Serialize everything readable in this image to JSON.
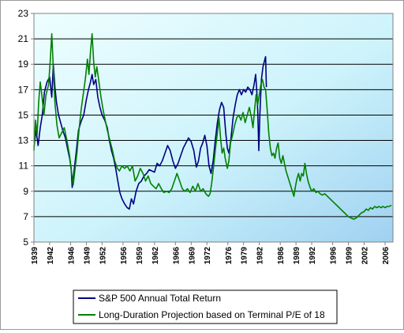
{
  "chart_data": {
    "type": "line",
    "title": "",
    "xlabel": "",
    "ylabel": "",
    "ylim": [
      5,
      23
    ],
    "yticks": [
      5,
      7,
      9,
      11,
      13,
      15,
      17,
      19,
      21,
      23
    ],
    "xlim": [
      1939,
      2007.5
    ],
    "xticks": [
      1939,
      1942,
      1946,
      1949,
      1952,
      1956,
      1959,
      1962,
      1966,
      1969,
      1972,
      1976,
      1979,
      1982,
      1986,
      1989,
      1992,
      1996,
      1999,
      2002,
      2006
    ],
    "grid": "horizontal",
    "plot_background": "light blue gradient",
    "legend_position": "bottom-center",
    "series": [
      {
        "name": "S&P 500 Annual Total Return",
        "color": "#000080",
        "points": [
          [
            1939.0,
            12.5
          ],
          [
            1939.4,
            13.8
          ],
          [
            1939.8,
            12.6
          ],
          [
            1940.2,
            14.0
          ],
          [
            1940.6,
            15.0
          ],
          [
            1941.0,
            16.8
          ],
          [
            1941.5,
            17.6
          ],
          [
            1942.0,
            18.0
          ],
          [
            1942.4,
            16.4
          ],
          [
            1942.7,
            19.0
          ],
          [
            1943.0,
            17.2
          ],
          [
            1943.3,
            16.0
          ],
          [
            1943.7,
            15.0
          ],
          [
            1944.1,
            14.4
          ],
          [
            1944.5,
            13.8
          ],
          [
            1945.0,
            13.2
          ],
          [
            1945.4,
            12.4
          ],
          [
            1945.8,
            11.6
          ],
          [
            1946.1,
            10.8
          ],
          [
            1946.3,
            9.3
          ],
          [
            1946.6,
            10.4
          ],
          [
            1947.0,
            11.8
          ],
          [
            1947.5,
            13.8
          ],
          [
            1948.0,
            14.5
          ],
          [
            1948.5,
            15.0
          ],
          [
            1949.0,
            16.2
          ],
          [
            1949.4,
            17.0
          ],
          [
            1949.8,
            17.6
          ],
          [
            1950.1,
            18.2
          ],
          [
            1950.4,
            17.4
          ],
          [
            1950.8,
            17.8
          ],
          [
            1951.2,
            16.4
          ],
          [
            1951.6,
            15.6
          ],
          [
            1952.0,
            15.0
          ],
          [
            1952.5,
            14.6
          ],
          [
            1953.0,
            14.0
          ],
          [
            1953.4,
            13.0
          ],
          [
            1953.8,
            12.2
          ],
          [
            1954.2,
            11.6
          ],
          [
            1954.6,
            10.8
          ],
          [
            1955.0,
            9.8
          ],
          [
            1955.4,
            8.9
          ],
          [
            1955.8,
            8.4
          ],
          [
            1956.3,
            8.0
          ],
          [
            1956.8,
            7.7
          ],
          [
            1957.2,
            7.6
          ],
          [
            1957.6,
            8.4
          ],
          [
            1958.0,
            8.0
          ],
          [
            1958.5,
            9.0
          ],
          [
            1959.0,
            9.6
          ],
          [
            1959.5,
            9.8
          ],
          [
            1960.0,
            10.2
          ],
          [
            1960.5,
            10.4
          ],
          [
            1961.0,
            10.7
          ],
          [
            1961.5,
            10.6
          ],
          [
            1962.0,
            10.5
          ],
          [
            1962.5,
            11.2
          ],
          [
            1963.0,
            11.0
          ],
          [
            1963.5,
            11.4
          ],
          [
            1964.0,
            12.0
          ],
          [
            1964.5,
            12.6
          ],
          [
            1965.0,
            12.2
          ],
          [
            1965.5,
            11.4
          ],
          [
            1966.0,
            10.8
          ],
          [
            1966.5,
            11.2
          ],
          [
            1967.0,
            11.8
          ],
          [
            1967.5,
            12.4
          ],
          [
            1968.0,
            12.8
          ],
          [
            1968.5,
            13.2
          ],
          [
            1969.0,
            12.9
          ],
          [
            1969.5,
            12.2
          ],
          [
            1970.0,
            10.9
          ],
          [
            1970.4,
            11.4
          ],
          [
            1970.8,
            12.4
          ],
          [
            1971.2,
            12.8
          ],
          [
            1971.6,
            13.4
          ],
          [
            1972.0,
            12.6
          ],
          [
            1972.4,
            11.0
          ],
          [
            1972.8,
            10.4
          ],
          [
            1973.2,
            11.4
          ],
          [
            1973.6,
            13.0
          ],
          [
            1974.0,
            14.4
          ],
          [
            1974.4,
            15.4
          ],
          [
            1974.8,
            16.0
          ],
          [
            1975.2,
            15.6
          ],
          [
            1975.6,
            13.6
          ],
          [
            1975.9,
            12.4
          ],
          [
            1976.2,
            12.0
          ],
          [
            1976.6,
            13.2
          ],
          [
            1977.0,
            14.8
          ],
          [
            1977.4,
            15.8
          ],
          [
            1977.8,
            16.6
          ],
          [
            1978.2,
            17.0
          ],
          [
            1978.6,
            16.6
          ],
          [
            1979.0,
            17.0
          ],
          [
            1979.4,
            16.8
          ],
          [
            1979.8,
            17.2
          ],
          [
            1980.2,
            17.0
          ],
          [
            1980.6,
            16.6
          ],
          [
            1981.0,
            17.4
          ],
          [
            1981.3,
            18.2
          ],
          [
            1981.5,
            17.0
          ],
          [
            1981.7,
            15.4
          ],
          [
            1981.9,
            12.2
          ],
          [
            1982.1,
            15.0
          ],
          [
            1982.4,
            17.8
          ],
          [
            1982.7,
            18.8
          ],
          [
            1983.0,
            19.3
          ],
          [
            1983.2,
            19.6
          ],
          [
            1983.35,
            17.2
          ]
        ]
      },
      {
        "name": "Long-Duration Projection based on Terminal P/E of 18",
        "color": "#008000",
        "points": [
          [
            1939.0,
            12.2
          ],
          [
            1939.3,
            14.6
          ],
          [
            1939.6,
            13.4
          ],
          [
            1939.9,
            16.0
          ],
          [
            1940.2,
            17.6
          ],
          [
            1940.5,
            16.6
          ],
          [
            1940.9,
            15.0
          ],
          [
            1941.3,
            16.6
          ],
          [
            1941.8,
            17.4
          ],
          [
            1942.1,
            19.2
          ],
          [
            1942.4,
            21.4
          ],
          [
            1942.7,
            18.6
          ],
          [
            1943.0,
            16.0
          ],
          [
            1943.4,
            14.2
          ],
          [
            1943.8,
            13.2
          ],
          [
            1944.3,
            13.6
          ],
          [
            1944.8,
            14.0
          ],
          [
            1945.3,
            13.0
          ],
          [
            1945.8,
            11.8
          ],
          [
            1946.2,
            10.4
          ],
          [
            1946.5,
            9.5
          ],
          [
            1946.8,
            10.6
          ],
          [
            1947.2,
            12.0
          ],
          [
            1947.6,
            13.8
          ],
          [
            1948.0,
            15.4
          ],
          [
            1948.4,
            16.6
          ],
          [
            1948.8,
            17.8
          ],
          [
            1949.2,
            19.4
          ],
          [
            1949.5,
            18.2
          ],
          [
            1949.8,
            20.0
          ],
          [
            1950.1,
            21.4
          ],
          [
            1950.4,
            19.2
          ],
          [
            1950.7,
            18.0
          ],
          [
            1951.0,
            18.8
          ],
          [
            1951.4,
            17.6
          ],
          [
            1951.8,
            16.4
          ],
          [
            1952.2,
            15.4
          ],
          [
            1952.6,
            14.6
          ],
          [
            1953.0,
            13.8
          ],
          [
            1953.5,
            13.0
          ],
          [
            1954.0,
            12.2
          ],
          [
            1954.4,
            11.4
          ],
          [
            1954.9,
            10.8
          ],
          [
            1955.3,
            10.6
          ],
          [
            1955.8,
            11.0
          ],
          [
            1956.3,
            10.8
          ],
          [
            1956.8,
            11.0
          ],
          [
            1957.3,
            10.6
          ],
          [
            1957.8,
            11.0
          ],
          [
            1958.3,
            9.8
          ],
          [
            1958.8,
            10.2
          ],
          [
            1959.3,
            10.8
          ],
          [
            1959.8,
            10.4
          ],
          [
            1960.3,
            9.8
          ],
          [
            1960.8,
            10.2
          ],
          [
            1961.3,
            9.6
          ],
          [
            1961.8,
            9.4
          ],
          [
            1962.3,
            9.2
          ],
          [
            1962.8,
            9.6
          ],
          [
            1963.3,
            9.2
          ],
          [
            1963.8,
            8.9
          ],
          [
            1964.3,
            9.0
          ],
          [
            1964.8,
            8.9
          ],
          [
            1965.3,
            9.2
          ],
          [
            1965.8,
            9.8
          ],
          [
            1966.3,
            10.4
          ],
          [
            1966.8,
            9.8
          ],
          [
            1967.3,
            9.2
          ],
          [
            1967.8,
            9.0
          ],
          [
            1968.3,
            9.2
          ],
          [
            1968.8,
            8.9
          ],
          [
            1969.3,
            9.4
          ],
          [
            1969.8,
            9.0
          ],
          [
            1970.3,
            9.6
          ],
          [
            1970.8,
            9.0
          ],
          [
            1971.3,
            9.2
          ],
          [
            1971.8,
            8.8
          ],
          [
            1972.3,
            8.6
          ],
          [
            1972.6,
            8.8
          ],
          [
            1972.9,
            9.6
          ],
          [
            1973.3,
            11.0
          ],
          [
            1973.7,
            12.6
          ],
          [
            1974.0,
            13.6
          ],
          [
            1974.3,
            14.8
          ],
          [
            1974.6,
            13.2
          ],
          [
            1974.9,
            12.0
          ],
          [
            1975.2,
            12.4
          ],
          [
            1975.5,
            11.6
          ],
          [
            1975.9,
            10.8
          ],
          [
            1976.2,
            11.4
          ],
          [
            1976.5,
            12.8
          ],
          [
            1976.9,
            13.4
          ],
          [
            1977.3,
            14.2
          ],
          [
            1977.7,
            14.8
          ],
          [
            1978.1,
            15.0
          ],
          [
            1978.5,
            14.6
          ],
          [
            1978.9,
            15.2
          ],
          [
            1979.3,
            14.4
          ],
          [
            1979.7,
            15.0
          ],
          [
            1980.1,
            15.6
          ],
          [
            1980.5,
            14.8
          ],
          [
            1980.8,
            14.0
          ],
          [
            1981.1,
            15.4
          ],
          [
            1981.4,
            16.6
          ],
          [
            1981.7,
            15.8
          ],
          [
            1982.0,
            16.6
          ],
          [
            1982.3,
            17.4
          ],
          [
            1982.6,
            17.8
          ],
          [
            1982.9,
            17.2
          ],
          [
            1983.2,
            17.0
          ],
          [
            1983.5,
            15.4
          ],
          [
            1983.8,
            13.6
          ],
          [
            1984.1,
            12.4
          ],
          [
            1984.4,
            11.8
          ],
          [
            1984.7,
            12.0
          ],
          [
            1985.0,
            11.6
          ],
          [
            1985.3,
            12.4
          ],
          [
            1985.6,
            12.8
          ],
          [
            1985.9,
            11.6
          ],
          [
            1986.2,
            11.2
          ],
          [
            1986.5,
            11.8
          ],
          [
            1986.8,
            11.2
          ],
          [
            1987.1,
            10.6
          ],
          [
            1987.4,
            10.2
          ],
          [
            1987.7,
            9.8
          ],
          [
            1988.0,
            9.4
          ],
          [
            1988.3,
            9.0
          ],
          [
            1988.6,
            8.6
          ],
          [
            1988.9,
            9.4
          ],
          [
            1989.2,
            10.0
          ],
          [
            1989.5,
            10.4
          ],
          [
            1989.8,
            9.8
          ],
          [
            1990.1,
            10.4
          ],
          [
            1990.4,
            10.2
          ],
          [
            1990.7,
            11.2
          ],
          [
            1991.0,
            10.4
          ],
          [
            1991.3,
            9.8
          ],
          [
            1991.6,
            9.4
          ],
          [
            1992.0,
            9.0
          ],
          [
            1992.4,
            9.2
          ],
          [
            1992.8,
            8.9
          ],
          [
            1993.2,
            9.0
          ],
          [
            1993.6,
            8.8
          ],
          [
            1994.0,
            8.7
          ],
          [
            1994.5,
            8.8
          ],
          [
            1995.0,
            8.6
          ],
          [
            1995.5,
            8.4
          ],
          [
            1996.0,
            8.2
          ],
          [
            1996.5,
            8.0
          ],
          [
            1997.0,
            7.8
          ],
          [
            1997.5,
            7.6
          ],
          [
            1998.0,
            7.4
          ],
          [
            1998.5,
            7.2
          ],
          [
            1999.0,
            7.0
          ],
          [
            1999.5,
            6.9
          ],
          [
            2000.0,
            6.8
          ],
          [
            2000.5,
            6.9
          ],
          [
            2001.0,
            7.1
          ],
          [
            2001.5,
            7.3
          ],
          [
            2002.0,
            7.4
          ],
          [
            2002.4,
            7.6
          ],
          [
            2002.8,
            7.5
          ],
          [
            2003.2,
            7.7
          ],
          [
            2003.6,
            7.6
          ],
          [
            2004.0,
            7.8
          ],
          [
            2004.4,
            7.7
          ],
          [
            2004.8,
            7.8
          ],
          [
            2005.2,
            7.7
          ],
          [
            2005.6,
            7.8
          ],
          [
            2006.0,
            7.7
          ],
          [
            2006.4,
            7.8
          ],
          [
            2006.8,
            7.8
          ],
          [
            2007.2,
            7.9
          ]
        ]
      }
    ]
  }
}
